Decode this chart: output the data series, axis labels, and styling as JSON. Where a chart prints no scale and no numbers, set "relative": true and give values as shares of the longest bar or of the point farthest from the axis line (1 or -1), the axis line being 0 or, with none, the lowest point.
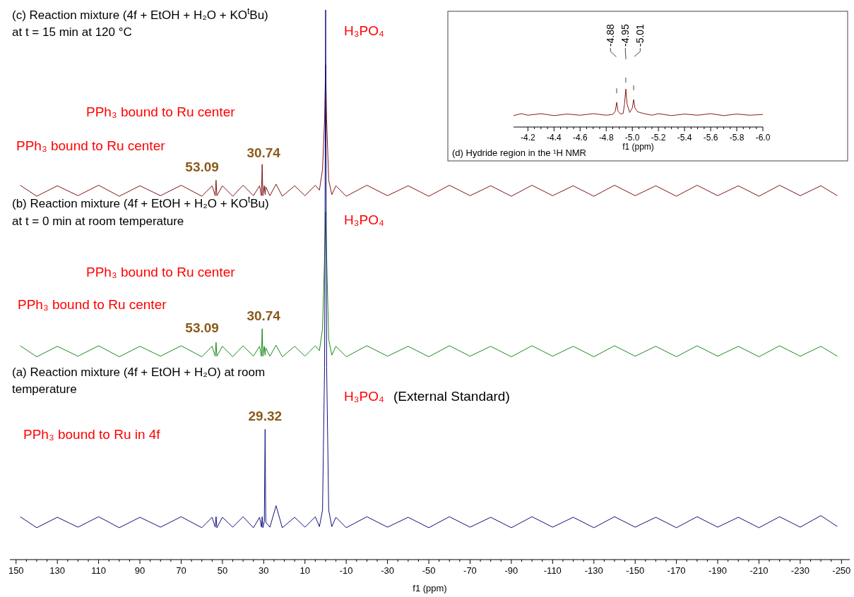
{
  "chart_data": [
    {
      "type": "line",
      "relative": true,
      "xlabel": "f1 (ppm)",
      "xlim": [
        153,
        -254
      ],
      "xticks": [
        150,
        130,
        110,
        90,
        70,
        50,
        30,
        10,
        -10,
        -30,
        -50,
        -70,
        -90,
        -110,
        -130,
        -150,
        -170,
        -190,
        -210,
        -230,
        -250
      ],
      "x": [
        148,
        140,
        130,
        120,
        110,
        100,
        90,
        80,
        70,
        60,
        55,
        53.5,
        53.09,
        52.7,
        50,
        45,
        40,
        35,
        32,
        31.1,
        30.74,
        30.4,
        29.7,
        29.32,
        29,
        27,
        24,
        21,
        15,
        10,
        5,
        3,
        1.5,
        0.5,
        0,
        -0.5,
        -1.5,
        -3,
        -5,
        -10,
        -20,
        -30,
        -40,
        -50,
        -60,
        -70,
        -80,
        -90,
        -100,
        -110,
        -120,
        -130,
        -140,
        -150,
        -160,
        -170,
        -180,
        -190,
        -200,
        -210,
        -220,
        -230,
        -240,
        -248
      ],
      "series": [
        {
          "color": "#7f1414",
          "values": [
            0.681,
            0.661,
            0.68,
            0.662,
            0.681,
            0.661,
            0.68,
            0.662,
            0.681,
            0.661,
            0.68,
            0.662,
            0.69,
            0.662,
            0.68,
            0.661,
            0.681,
            0.662,
            0.68,
            0.662,
            0.719,
            0.662,
            0.68,
            0.664,
            0.678,
            0.662,
            0.683,
            0.661,
            0.68,
            0.662,
            0.681,
            0.672,
            0.71,
            0.8,
            0.9,
            0.8,
            0.69,
            0.664,
            0.68,
            0.661,
            0.681,
            0.662,
            0.68,
            0.661,
            0.681,
            0.662,
            0.68,
            0.661,
            0.681,
            0.662,
            0.68,
            0.661,
            0.681,
            0.662,
            0.68,
            0.661,
            0.681,
            0.662,
            0.68,
            0.661,
            0.681,
            0.662,
            0.68,
            0.662
          ]
        },
        {
          "color": "#1c8a1c",
          "values": [
            0.389,
            0.369,
            0.388,
            0.37,
            0.389,
            0.369,
            0.388,
            0.37,
            0.389,
            0.369,
            0.388,
            0.37,
            0.395,
            0.37,
            0.388,
            0.369,
            0.389,
            0.37,
            0.388,
            0.37,
            0.42,
            0.37,
            0.388,
            0.372,
            0.385,
            0.37,
            0.39,
            0.369,
            0.388,
            0.37,
            0.389,
            0.38,
            0.42,
            0.55,
            0.633,
            0.55,
            0.4,
            0.372,
            0.388,
            0.369,
            0.389,
            0.37,
            0.388,
            0.369,
            0.389,
            0.37,
            0.388,
            0.369,
            0.389,
            0.37,
            0.388,
            0.369,
            0.389,
            0.37,
            0.388,
            0.369,
            0.389,
            0.37,
            0.388,
            0.369,
            0.389,
            0.37,
            0.388,
            0.37
          ]
        },
        {
          "color": "#10107f",
          "values": [
            0.078,
            0.058,
            0.077,
            0.059,
            0.078,
            0.058,
            0.077,
            0.059,
            0.078,
            0.058,
            0.077,
            0.059,
            0.078,
            0.058,
            0.077,
            0.059,
            0.078,
            0.058,
            0.077,
            0.059,
            0.078,
            0.058,
            0.07,
            0.237,
            0.068,
            0.059,
            0.098,
            0.058,
            0.077,
            0.059,
            0.078,
            0.06,
            0.09,
            0.35,
            1,
            0.35,
            0.09,
            0.06,
            0.077,
            0.058,
            0.078,
            0.059,
            0.077,
            0.058,
            0.078,
            0.059,
            0.077,
            0.058,
            0.078,
            0.059,
            0.077,
            0.058,
            0.078,
            0.059,
            0.077,
            0.058,
            0.078,
            0.059,
            0.077,
            0.058,
            0.078,
            0.059,
            0.08,
            0.06
          ]
        }
      ],
      "annotations": [
        "(c) Reaction mixture (4f + EtOH + H₂O + KO$^{t}$Bu)",
        "at t = 15 min at 120 °C",
        "H₃PO₄",
        "PPh₃ bound to Ru center",
        "PPh₃ bound to Ru center",
        {
          "text": "53.09",
          "x": 53.09,
          "y": 0.69
        },
        {
          "text": "30.74",
          "x": 30.74,
          "y": 0.719
        },
        "(b) Reaction mixture (4f + EtOH + H₂O + KO$^{t}$Bu)",
        "at t = 0 min at room temperature",
        "H₃PO₄",
        "PPh₃ bound to Ru center",
        "PPh₃ bound to Ru center",
        {
          "text": "53.09",
          "x": 53.09,
          "y": 0.395
        },
        {
          "text": "30.74",
          "x": 30.74,
          "y": 0.42
        },
        "(a) Reaction mixture (4f + EtOH + H₂O) at room",
        "temperature",
        "H₃PO₄",
        "(External Standard)",
        {
          "text": "29.32",
          "x": 29.32,
          "y": 0.237
        },
        "PPh₃ bound to Ru in 4f"
      ]
    },
    {
      "type": "line",
      "relative": true,
      "xlabel": "f1 (ppm)",
      "xlim": [
        -4.09,
        -6
      ],
      "xticks": [
        -4.2,
        -4.4,
        -4.6,
        -4.8,
        {
          "value": -5,
          "label": "-5.0"
        },
        -5.2,
        -5.4,
        -5.6,
        -5.8,
        {
          "value": -6,
          "label": "-6.0"
        }
      ],
      "x": [
        -4.09,
        -4.15,
        -4.2,
        -4.3,
        -4.4,
        -4.5,
        -4.6,
        -4.7,
        -4.8,
        -4.85,
        -4.87,
        -4.88,
        -4.89,
        -4.91,
        -4.93,
        -4.94,
        -4.95,
        -4.96,
        -4.98,
        -5,
        -5.01,
        -5.02,
        -5.04,
        -5.08,
        -5.15,
        -5.2,
        -5.3,
        -5.4,
        -5.5,
        -5.6,
        -5.7,
        -5.8,
        -5.9,
        -6
      ],
      "series": [
        {
          "color": "#8b1a1a",
          "values": [
            0.3,
            0.35,
            0.31,
            0.35,
            0.3,
            0.34,
            0.31,
            0.35,
            0.31,
            0.33,
            0.42,
            0.65,
            0.42,
            0.34,
            0.36,
            0.6,
            1,
            0.6,
            0.38,
            0.5,
            0.72,
            0.5,
            0.4,
            0.36,
            0.31,
            0.35,
            0.3,
            0.34,
            0.31,
            0.35,
            0.3,
            0.34,
            0.31,
            0.33
          ]
        }
      ],
      "annotations": [
        {
          "text": "-4.88",
          "x": -4.88,
          "y": 0.65
        },
        {
          "text": "-4.95",
          "x": -4.95,
          "y": 1
        },
        {
          "text": "-5.01",
          "x": -5.01,
          "y": 0.72
        },
        "(d) Hydride region in the ¹H NMR"
      ]
    }
  ]
}
